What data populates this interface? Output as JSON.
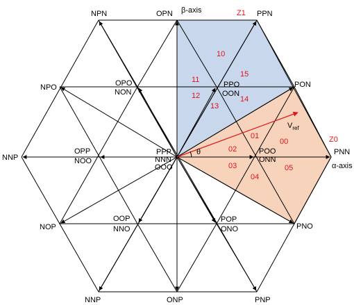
{
  "colors": {
    "upper_sector_fill": "#c9d7ec",
    "lower_sector_fill": "#f8d3bb",
    "line": "#000000",
    "vector": "#e0151b",
    "region_label": "#e0151b"
  },
  "axes": {
    "beta_label": "β-axis",
    "alpha_label": "α-axis"
  },
  "vectors": {
    "npn": "NPN",
    "opn": "OPN",
    "ppn": "PPN",
    "npo": "NPO",
    "opo": "OPO",
    "non": "NON",
    "ppo": "PPO",
    "oon": "OON",
    "pon": "PON",
    "nnp": "NNP",
    "opp": "OPP",
    "noo": "NOO",
    "ppp": "PPP",
    "nnn": "NNN",
    "ooo": "OOO",
    "poo": "POO",
    "onn": "ONN",
    "pnn": "PNN",
    "nop": "NOP",
    "oop": "OOP",
    "nno": "NNO",
    "pop": "POP",
    "ono": "ONO",
    "pno": "PNO",
    "nnp_bottom": "NNP",
    "onp": "ONP",
    "pnp": "PNP"
  },
  "sector_labels": {
    "z1": "Z1",
    "z0": "Z0"
  },
  "regions": [
    "00",
    "01",
    "02",
    "03",
    "04",
    "05",
    "10",
    "11",
    "12",
    "13",
    "14",
    "15"
  ],
  "reference": {
    "vref": "V",
    "vref_sub": "ref",
    "theta": "θ"
  }
}
